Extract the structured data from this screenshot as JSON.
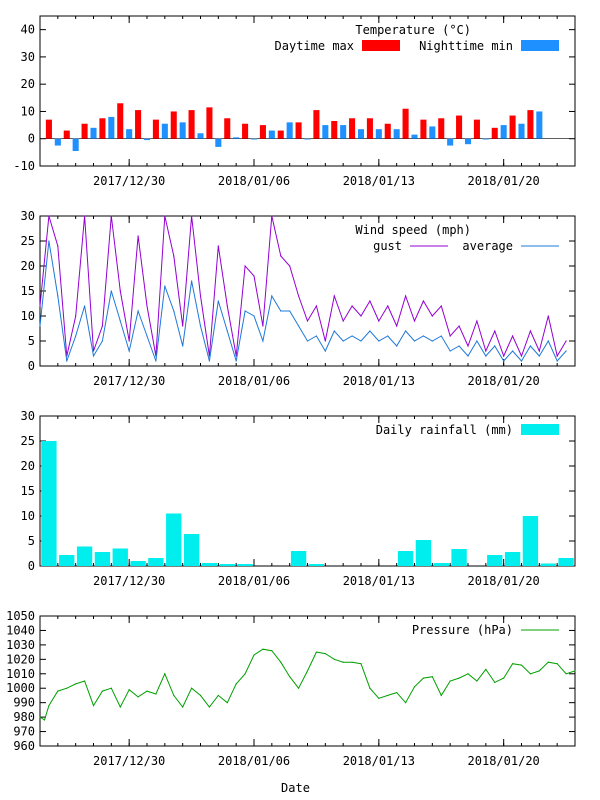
{
  "chart_data": [
    {
      "type": "bar",
      "title": "Temperature (°C)",
      "legend_position": "top-right",
      "ylim": [
        -10,
        45
      ],
      "yticks": [
        "-10",
        "0",
        "10",
        "20",
        "30",
        "40"
      ],
      "yticks_values": [
        -10,
        0,
        10,
        20,
        30,
        40
      ],
      "x_start": "2017-12-25",
      "x_end": "2018-01-24",
      "xticks": [
        "2017/12/30",
        "2018/01/06",
        "2018/01/13",
        "2018/01/20"
      ],
      "xticks_dates": [
        "2017-12-30",
        "2018-01-06",
        "2018-01-13",
        "2018-01-20"
      ],
      "colors": {
        "day": "#ff0000",
        "night": "#1e90ff"
      },
      "series": [
        {
          "name": "Daytime max",
          "color": "#ff0000",
          "points": [
            [
              "2017-12-25T12:00",
              7.0
            ],
            [
              "2017-12-26T12:00",
              3.0
            ],
            [
              "2017-12-27T12:00",
              5.5
            ],
            [
              "2017-12-28T12:00",
              7.5
            ],
            [
              "2017-12-29T12:00",
              13.0
            ],
            [
              "2017-12-30T12:00",
              10.5
            ],
            [
              "2017-12-31T12:00",
              7.0
            ],
            [
              "2018-01-01T12:00",
              10.0
            ],
            [
              "2018-01-02T12:00",
              10.5
            ],
            [
              "2018-01-03T12:00",
              11.5
            ],
            [
              "2018-01-04T12:00",
              7.5
            ],
            [
              "2018-01-05T12:00",
              5.5
            ],
            [
              "2018-01-06T12:00",
              5.0
            ],
            [
              "2018-01-07T12:00",
              3.0
            ],
            [
              "2018-01-08T12:00",
              6.0
            ],
            [
              "2018-01-09T12:00",
              10.5
            ],
            [
              "2018-01-10T12:00",
              6.5
            ],
            [
              "2018-01-11T12:00",
              7.5
            ],
            [
              "2018-01-12T12:00",
              7.5
            ],
            [
              "2018-01-13T12:00",
              5.5
            ],
            [
              "2018-01-14T12:00",
              11.0
            ],
            [
              "2018-01-15T12:00",
              7.0
            ],
            [
              "2018-01-16T12:00",
              7.5
            ],
            [
              "2018-01-17T12:00",
              8.5
            ],
            [
              "2018-01-18T12:00",
              7.0
            ],
            [
              "2018-01-19T12:00",
              4.0
            ],
            [
              "2018-01-20T12:00",
              8.5
            ],
            [
              "2018-01-21T12:00",
              10.5
            ]
          ]
        },
        {
          "name": "Nighttime min",
          "color": "#1e90ff",
          "points": [
            [
              "2017-12-26T00:00",
              -2.5
            ],
            [
              "2017-12-27T00:00",
              -4.5
            ],
            [
              "2017-12-28T00:00",
              4.0
            ],
            [
              "2017-12-29T00:00",
              8.0
            ],
            [
              "2017-12-30T00:00",
              3.5
            ],
            [
              "2017-12-31T00:00",
              -0.5
            ],
            [
              "2018-01-01T00:00",
              5.5
            ],
            [
              "2018-01-02T00:00",
              6.0
            ],
            [
              "2018-01-03T00:00",
              2.0
            ],
            [
              "2018-01-04T00:00",
              -3.0
            ],
            [
              "2018-01-05T00:00",
              0.5
            ],
            [
              "2018-01-06T00:00",
              0.0
            ],
            [
              "2018-01-07T00:00",
              3.0
            ],
            [
              "2018-01-08T00:00",
              6.0
            ],
            [
              "2018-01-09T00:00",
              0.0
            ],
            [
              "2018-01-10T00:00",
              5.0
            ],
            [
              "2018-01-11T00:00",
              5.0
            ],
            [
              "2018-01-12T00:00",
              3.5
            ],
            [
              "2018-01-13T00:00",
              3.5
            ],
            [
              "2018-01-14T00:00",
              3.5
            ],
            [
              "2018-01-15T00:00",
              1.5
            ],
            [
              "2018-01-16T00:00",
              4.5
            ],
            [
              "2018-01-17T00:00",
              -2.5
            ],
            [
              "2018-01-18T00:00",
              -2.0
            ],
            [
              "2018-01-19T00:00",
              0.0
            ],
            [
              "2018-01-20T00:00",
              5.0
            ],
            [
              "2018-01-21T00:00",
              5.5
            ],
            [
              "2018-01-22T00:00",
              10.0
            ]
          ]
        }
      ]
    },
    {
      "type": "line",
      "title": "Wind speed (mph)",
      "legend_position": "top-right",
      "ylim": [
        0,
        30
      ],
      "yticks": [
        "0",
        "5",
        "10",
        "15",
        "20",
        "25",
        "30"
      ],
      "yticks_values": [
        0,
        5,
        10,
        15,
        20,
        25,
        30
      ],
      "x_start": "2017-12-25",
      "x_end": "2018-01-24",
      "xticks": [
        "2017/12/30",
        "2018/01/06",
        "2018/01/13",
        "2018/01/20"
      ],
      "xticks_dates": [
        "2017-12-30",
        "2018-01-06",
        "2018-01-13",
        "2018-01-20"
      ],
      "series": [
        {
          "name": "gust",
          "color": "#9400d3",
          "x": [
            "2017-12-25T00:00",
            "2017-12-25T12:00",
            "2017-12-26T00:00",
            "2017-12-26T12:00",
            "2017-12-27T00:00",
            "2017-12-27T12:00",
            "2017-12-28T00:00",
            "2017-12-28T12:00",
            "2017-12-29T00:00",
            "2017-12-29T12:00",
            "2017-12-30T00:00",
            "2017-12-30T12:00",
            "2017-12-31T00:00",
            "2017-12-31T12:00",
            "2018-01-01T00:00",
            "2018-01-01T12:00",
            "2018-01-02T00:00",
            "2018-01-02T12:00",
            "2018-01-03T00:00",
            "2018-01-03T12:00",
            "2018-01-04T00:00",
            "2018-01-04T12:00",
            "2018-01-05T00:00",
            "2018-01-05T12:00",
            "2018-01-06T00:00",
            "2018-01-06T12:00",
            "2018-01-07T00:00",
            "2018-01-07T12:00",
            "2018-01-08T00:00",
            "2018-01-08T12:00",
            "2018-01-09T00:00",
            "2018-01-09T12:00",
            "2018-01-10T00:00",
            "2018-01-10T12:00",
            "2018-01-11T00:00",
            "2018-01-11T12:00",
            "2018-01-12T00:00",
            "2018-01-12T12:00",
            "2018-01-13T00:00",
            "2018-01-13T12:00",
            "2018-01-14T00:00",
            "2018-01-14T12:00",
            "2018-01-15T00:00",
            "2018-01-15T12:00",
            "2018-01-16T00:00",
            "2018-01-16T12:00",
            "2018-01-17T00:00",
            "2018-01-17T12:00",
            "2018-01-18T00:00",
            "2018-01-18T12:00",
            "2018-01-19T00:00",
            "2018-01-19T12:00",
            "2018-01-20T00:00",
            "2018-01-20T12:00",
            "2018-01-21T00:00",
            "2018-01-21T12:00",
            "2018-01-22T00:00",
            "2018-01-22T12:00",
            "2018-01-23T00:00",
            "2018-01-23T12:00"
          ],
          "values": [
            12,
            30,
            24,
            2,
            10,
            30,
            3,
            8,
            30,
            15,
            5,
            26,
            12,
            2,
            30,
            22,
            8,
            30,
            14,
            2,
            24,
            12,
            2,
            20,
            18,
            8,
            30,
            22,
            20,
            14,
            9,
            12,
            5,
            14,
            9,
            12,
            10,
            13,
            9,
            12,
            8,
            14,
            9,
            13,
            10,
            12,
            6,
            8,
            4,
            9,
            3,
            7,
            2,
            6,
            2,
            7,
            3,
            10,
            2,
            5
          ]
        },
        {
          "name": "average",
          "color": "#1e78d8",
          "x": [
            "2017-12-25T00:00",
            "2017-12-25T12:00",
            "2017-12-26T00:00",
            "2017-12-26T12:00",
            "2017-12-27T00:00",
            "2017-12-27T12:00",
            "2017-12-28T00:00",
            "2017-12-28T12:00",
            "2017-12-29T00:00",
            "2017-12-29T12:00",
            "2017-12-30T00:00",
            "2017-12-30T12:00",
            "2017-12-31T00:00",
            "2017-12-31T12:00",
            "2018-01-01T00:00",
            "2018-01-01T12:00",
            "2018-01-02T00:00",
            "2018-01-02T12:00",
            "2018-01-03T00:00",
            "2018-01-03T12:00",
            "2018-01-04T00:00",
            "2018-01-04T12:00",
            "2018-01-05T00:00",
            "2018-01-05T12:00",
            "2018-01-06T00:00",
            "2018-01-06T12:00",
            "2018-01-07T00:00",
            "2018-01-07T12:00",
            "2018-01-08T00:00",
            "2018-01-08T12:00",
            "2018-01-09T00:00",
            "2018-01-09T12:00",
            "2018-01-10T00:00",
            "2018-01-10T12:00",
            "2018-01-11T00:00",
            "2018-01-11T12:00",
            "2018-01-12T00:00",
            "2018-01-12T12:00",
            "2018-01-13T00:00",
            "2018-01-13T12:00",
            "2018-01-14T00:00",
            "2018-01-14T12:00",
            "2018-01-15T00:00",
            "2018-01-15T12:00",
            "2018-01-16T00:00",
            "2018-01-16T12:00",
            "2018-01-17T00:00",
            "2018-01-17T12:00",
            "2018-01-18T00:00",
            "2018-01-18T12:00",
            "2018-01-19T00:00",
            "2018-01-19T12:00",
            "2018-01-20T00:00",
            "2018-01-20T12:00",
            "2018-01-21T00:00",
            "2018-01-21T12:00",
            "2018-01-22T00:00",
            "2018-01-22T12:00",
            "2018-01-23T00:00",
            "2018-01-23T12:00"
          ],
          "values": [
            8,
            25,
            14,
            1,
            6,
            12,
            2,
            5,
            15,
            9,
            3,
            11,
            6,
            1,
            16,
            11,
            4,
            17,
            8,
            1,
            13,
            7,
            1,
            11,
            10,
            5,
            14,
            11,
            11,
            8,
            5,
            6,
            3,
            7,
            5,
            6,
            5,
            7,
            5,
            6,
            4,
            7,
            5,
            6,
            5,
            6,
            3,
            4,
            2,
            5,
            2,
            4,
            1,
            3,
            1,
            4,
            2,
            5,
            1,
            3
          ]
        }
      ]
    },
    {
      "type": "bar",
      "title": "Daily rainfall (mm)",
      "legend_position": "top-right",
      "ylim": [
        0,
        30
      ],
      "yticks": [
        "0",
        "5",
        "10",
        "15",
        "20",
        "25",
        "30"
      ],
      "yticks_values": [
        0,
        5,
        10,
        15,
        20,
        25,
        30
      ],
      "x_start": "2017-12-25",
      "x_end": "2018-01-24",
      "xticks": [
        "2017/12/30",
        "2018/01/06",
        "2018/01/13",
        "2018/01/20"
      ],
      "xticks_dates": [
        "2017-12-30",
        "2018-01-06",
        "2018-01-13",
        "2018-01-20"
      ],
      "color": "#00eeee",
      "series": [
        {
          "name": "Daily rainfall (mm)",
          "color": "#00eeee",
          "points": [
            [
              "2017-12-25",
              25.0
            ],
            [
              "2017-12-26",
              2.2
            ],
            [
              "2017-12-27",
              3.9
            ],
            [
              "2017-12-28",
              2.8
            ],
            [
              "2017-12-29",
              3.5
            ],
            [
              "2017-12-30",
              1.0
            ],
            [
              "2017-12-31",
              1.6
            ],
            [
              "2018-01-01",
              10.5
            ],
            [
              "2018-01-02",
              6.4
            ],
            [
              "2018-01-03",
              0.6
            ],
            [
              "2018-01-04",
              0.4
            ],
            [
              "2018-01-05",
              0.4
            ],
            [
              "2018-01-06",
              0.0
            ],
            [
              "2018-01-07",
              0.0
            ],
            [
              "2018-01-08",
              3.0
            ],
            [
              "2018-01-09",
              0.4
            ],
            [
              "2018-01-10",
              0.0
            ],
            [
              "2018-01-11",
              0.0
            ],
            [
              "2018-01-12",
              0.0
            ],
            [
              "2018-01-13",
              0.0
            ],
            [
              "2018-01-14",
              3.0
            ],
            [
              "2018-01-15",
              5.2
            ],
            [
              "2018-01-16",
              0.6
            ],
            [
              "2018-01-17",
              3.4
            ],
            [
              "2018-01-18",
              0.0
            ],
            [
              "2018-01-19",
              2.2
            ],
            [
              "2018-01-20",
              2.8
            ],
            [
              "2018-01-21",
              10.0
            ],
            [
              "2018-01-22",
              0.5
            ],
            [
              "2018-01-23",
              1.6
            ]
          ]
        }
      ]
    },
    {
      "type": "line",
      "title": "Pressure (hPa)",
      "legend_position": "top-right",
      "xlabel": "Date",
      "ylim": [
        960,
        1050
      ],
      "yticks": [
        "960",
        "970",
        "980",
        "990",
        "1000",
        "1010",
        "1020",
        "1030",
        "1040",
        "1050"
      ],
      "yticks_values": [
        960,
        970,
        980,
        990,
        1000,
        1010,
        1020,
        1030,
        1040,
        1050
      ],
      "x_start": "2017-12-25",
      "x_end": "2018-01-24",
      "xticks": [
        "2017/12/30",
        "2018/01/06",
        "2018/01/13",
        "2018/01/20"
      ],
      "xticks_dates": [
        "2017-12-30",
        "2018-01-06",
        "2018-01-13",
        "2018-01-20"
      ],
      "series": [
        {
          "name": "Pressure (hPa)",
          "color": "#00a000",
          "x": [
            "2017-12-25T00:00",
            "2017-12-25T06:00",
            "2017-12-25T12:00",
            "2017-12-26T00:00",
            "2017-12-26T12:00",
            "2017-12-27T00:00",
            "2017-12-27T12:00",
            "2017-12-28T00:00",
            "2017-12-28T12:00",
            "2017-12-29T00:00",
            "2017-12-29T12:00",
            "2017-12-30T00:00",
            "2017-12-30T12:00",
            "2017-12-31T00:00",
            "2017-12-31T12:00",
            "2018-01-01T00:00",
            "2018-01-01T12:00",
            "2018-01-02T00:00",
            "2018-01-02T12:00",
            "2018-01-03T00:00",
            "2018-01-03T12:00",
            "2018-01-04T00:00",
            "2018-01-04T12:00",
            "2018-01-05T00:00",
            "2018-01-05T12:00",
            "2018-01-06T00:00",
            "2018-01-06T12:00",
            "2018-01-07T00:00",
            "2018-01-07T12:00",
            "2018-01-08T00:00",
            "2018-01-08T12:00",
            "2018-01-09T00:00",
            "2018-01-09T12:00",
            "2018-01-10T00:00",
            "2018-01-10T12:00",
            "2018-01-11T00:00",
            "2018-01-11T12:00",
            "2018-01-12T00:00",
            "2018-01-12T12:00",
            "2018-01-13T00:00",
            "2018-01-13T12:00",
            "2018-01-14T00:00",
            "2018-01-14T12:00",
            "2018-01-15T00:00",
            "2018-01-15T12:00",
            "2018-01-16T00:00",
            "2018-01-16T12:00",
            "2018-01-17T00:00",
            "2018-01-17T12:00",
            "2018-01-18T00:00",
            "2018-01-18T12:00",
            "2018-01-19T00:00",
            "2018-01-19T12:00",
            "2018-01-20T00:00",
            "2018-01-20T12:00",
            "2018-01-21T00:00",
            "2018-01-21T12:00",
            "2018-01-22T00:00",
            "2018-01-22T12:00",
            "2018-01-23T00:00",
            "2018-01-23T12:00",
            "2018-01-24T00:00"
          ],
          "values": [
            980,
            978,
            988,
            998,
            1000,
            1003,
            1005,
            988,
            998,
            1000,
            987,
            999,
            994,
            998,
            996,
            1010,
            995,
            987,
            1000,
            995,
            987,
            995,
            990,
            1003,
            1010,
            1023,
            1027,
            1026,
            1018,
            1008,
            1000,
            1012,
            1025,
            1024,
            1020,
            1018,
            1018,
            1017,
            1000,
            993,
            995,
            997,
            990,
            1001,
            1007,
            1008,
            995,
            1005,
            1007,
            1010,
            1005,
            1013,
            1004,
            1007,
            1017,
            1016,
            1010,
            1012,
            1018,
            1017,
            1010,
            1012
          ]
        }
      ]
    }
  ]
}
